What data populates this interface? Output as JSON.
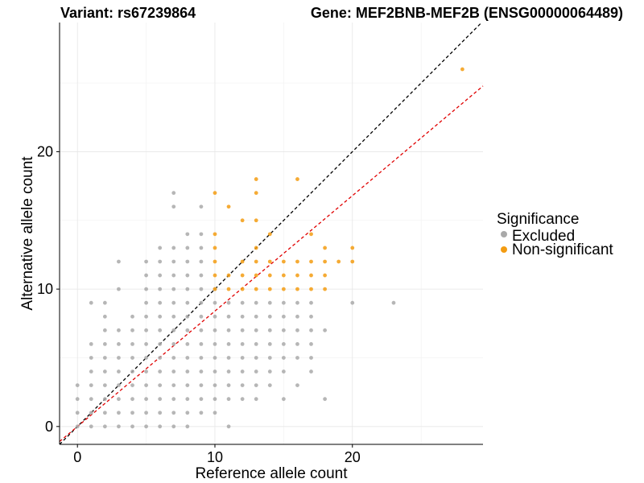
{
  "chart_data": {
    "type": "scatter",
    "title_left": "Variant: rs67239864",
    "title_right": "Gene: MEF2BNB-MEF2B (ENSG00000064489)",
    "xlabel": "Reference allele count",
    "ylabel": "Alternative allele count",
    "xlim": [
      -1.3,
      29.5
    ],
    "ylim": [
      -1.3,
      29.4
    ],
    "x_ticks": [
      0,
      10,
      20
    ],
    "y_ticks": [
      0,
      10,
      20
    ],
    "grid": true,
    "legend": {
      "title": "Significance",
      "position": "right",
      "entries": [
        {
          "name": "Excluded",
          "color": "#a9a9a9"
        },
        {
          "name": "Non-significant",
          "color": "#f39c12"
        }
      ]
    },
    "reference_lines": [
      {
        "slope": 1.0,
        "intercept": 0,
        "color": "#000000",
        "style": "dashed"
      },
      {
        "slope": 0.84,
        "intercept": 0,
        "color": "#e00000",
        "style": "dashed"
      }
    ],
    "series": [
      {
        "name": "Excluded",
        "color": "#a9a9a9",
        "points": [
          [
            0,
            0
          ],
          [
            0,
            1
          ],
          [
            0,
            2
          ],
          [
            0,
            3
          ],
          [
            1,
            0
          ],
          [
            1,
            1
          ],
          [
            1,
            2
          ],
          [
            1,
            3
          ],
          [
            1,
            4
          ],
          [
            1,
            5
          ],
          [
            1,
            6
          ],
          [
            1,
            9
          ],
          [
            2,
            0
          ],
          [
            2,
            1
          ],
          [
            2,
            2
          ],
          [
            2,
            3
          ],
          [
            2,
            4
          ],
          [
            2,
            5
          ],
          [
            2,
            6
          ],
          [
            2,
            7
          ],
          [
            2,
            8
          ],
          [
            2,
            9
          ],
          [
            3,
            0
          ],
          [
            3,
            1
          ],
          [
            3,
            2
          ],
          [
            3,
            3
          ],
          [
            3,
            4
          ],
          [
            3,
            5
          ],
          [
            3,
            6
          ],
          [
            3,
            7
          ],
          [
            3,
            10
          ],
          [
            3,
            12
          ],
          [
            4,
            0
          ],
          [
            4,
            1
          ],
          [
            4,
            2
          ],
          [
            4,
            3
          ],
          [
            4,
            4
          ],
          [
            4,
            5
          ],
          [
            4,
            6
          ],
          [
            4,
            7
          ],
          [
            4,
            8
          ],
          [
            5,
            0
          ],
          [
            5,
            1
          ],
          [
            5,
            2
          ],
          [
            5,
            3
          ],
          [
            5,
            4
          ],
          [
            5,
            5
          ],
          [
            5,
            6
          ],
          [
            5,
            7
          ],
          [
            5,
            8
          ],
          [
            5,
            9
          ],
          [
            5,
            10
          ],
          [
            5,
            11
          ],
          [
            5,
            12
          ],
          [
            6,
            0
          ],
          [
            6,
            1
          ],
          [
            6,
            2
          ],
          [
            6,
            3
          ],
          [
            6,
            4
          ],
          [
            6,
            5
          ],
          [
            6,
            6
          ],
          [
            6,
            7
          ],
          [
            6,
            8
          ],
          [
            6,
            9
          ],
          [
            6,
            10
          ],
          [
            6,
            11
          ],
          [
            6,
            12
          ],
          [
            6,
            13
          ],
          [
            7,
            0
          ],
          [
            7,
            1
          ],
          [
            7,
            2
          ],
          [
            7,
            3
          ],
          [
            7,
            4
          ],
          [
            7,
            5
          ],
          [
            7,
            6
          ],
          [
            7,
            7
          ],
          [
            7,
            8
          ],
          [
            7,
            9
          ],
          [
            7,
            10
          ],
          [
            7,
            11
          ],
          [
            7,
            12
          ],
          [
            7,
            13
          ],
          [
            7,
            16
          ],
          [
            7,
            17
          ],
          [
            8,
            0
          ],
          [
            8,
            1
          ],
          [
            8,
            2
          ],
          [
            8,
            3
          ],
          [
            8,
            4
          ],
          [
            8,
            5
          ],
          [
            8,
            6
          ],
          [
            8,
            7
          ],
          [
            8,
            8
          ],
          [
            8,
            9
          ],
          [
            8,
            10
          ],
          [
            8,
            11
          ],
          [
            8,
            12
          ],
          [
            8,
            13
          ],
          [
            8,
            14
          ],
          [
            9,
            1
          ],
          [
            9,
            2
          ],
          [
            9,
            3
          ],
          [
            9,
            4
          ],
          [
            9,
            5
          ],
          [
            9,
            6
          ],
          [
            9,
            7
          ],
          [
            9,
            8
          ],
          [
            9,
            9
          ],
          [
            9,
            10
          ],
          [
            9,
            11
          ],
          [
            9,
            12
          ],
          [
            9,
            13
          ],
          [
            9,
            14
          ],
          [
            9,
            16
          ],
          [
            10,
            1
          ],
          [
            10,
            2
          ],
          [
            10,
            3
          ],
          [
            10,
            4
          ],
          [
            10,
            5
          ],
          [
            10,
            6
          ],
          [
            10,
            7
          ],
          [
            10,
            8
          ],
          [
            10,
            9
          ],
          [
            10,
            10
          ],
          [
            11,
            0
          ],
          [
            11,
            2
          ],
          [
            11,
            3
          ],
          [
            11,
            4
          ],
          [
            11,
            5
          ],
          [
            11,
            6
          ],
          [
            11,
            7
          ],
          [
            11,
            8
          ],
          [
            11,
            9
          ],
          [
            12,
            2
          ],
          [
            12,
            3
          ],
          [
            12,
            4
          ],
          [
            12,
            5
          ],
          [
            12,
            6
          ],
          [
            12,
            7
          ],
          [
            12,
            8
          ],
          [
            12,
            9
          ],
          [
            13,
            2
          ],
          [
            13,
            3
          ],
          [
            13,
            4
          ],
          [
            13,
            5
          ],
          [
            13,
            6
          ],
          [
            13,
            7
          ],
          [
            13,
            8
          ],
          [
            13,
            9
          ],
          [
            14,
            3
          ],
          [
            14,
            4
          ],
          [
            14,
            5
          ],
          [
            14,
            6
          ],
          [
            14,
            7
          ],
          [
            14,
            8
          ],
          [
            14,
            9
          ],
          [
            15,
            2
          ],
          [
            15,
            4
          ],
          [
            15,
            5
          ],
          [
            15,
            6
          ],
          [
            15,
            7
          ],
          [
            15,
            8
          ],
          [
            15,
            9
          ],
          [
            16,
            3
          ],
          [
            16,
            5
          ],
          [
            16,
            6
          ],
          [
            16,
            7
          ],
          [
            16,
            8
          ],
          [
            16,
            9
          ],
          [
            17,
            4
          ],
          [
            17,
            5
          ],
          [
            17,
            6
          ],
          [
            17,
            7
          ],
          [
            17,
            8
          ],
          [
            17,
            9
          ],
          [
            18,
            2
          ],
          [
            18,
            7
          ],
          [
            20,
            9
          ],
          [
            23,
            9
          ]
        ]
      },
      {
        "name": "Non-significant",
        "color": "#f39c12",
        "points": [
          [
            10,
            10
          ],
          [
            10,
            11
          ],
          [
            10,
            12
          ],
          [
            10,
            13
          ],
          [
            10,
            14
          ],
          [
            10,
            17
          ],
          [
            11,
            10
          ],
          [
            11,
            11
          ],
          [
            11,
            16
          ],
          [
            12,
            10
          ],
          [
            12,
            11
          ],
          [
            12,
            12
          ],
          [
            12,
            15
          ],
          [
            13,
            10
          ],
          [
            13,
            11
          ],
          [
            13,
            12
          ],
          [
            13,
            13
          ],
          [
            13,
            15
          ],
          [
            13,
            17
          ],
          [
            13,
            18
          ],
          [
            14,
            10
          ],
          [
            14,
            11
          ],
          [
            14,
            12
          ],
          [
            14,
            14
          ],
          [
            15,
            10
          ],
          [
            15,
            11
          ],
          [
            15,
            12
          ],
          [
            16,
            10
          ],
          [
            16,
            11
          ],
          [
            16,
            12
          ],
          [
            16,
            18
          ],
          [
            17,
            10
          ],
          [
            17,
            11
          ],
          [
            17,
            12
          ],
          [
            17,
            14
          ],
          [
            18,
            10
          ],
          [
            18,
            11
          ],
          [
            18,
            12
          ],
          [
            18,
            13
          ],
          [
            19,
            12
          ],
          [
            20,
            12
          ],
          [
            20,
            13
          ],
          [
            28,
            26
          ]
        ]
      }
    ]
  }
}
